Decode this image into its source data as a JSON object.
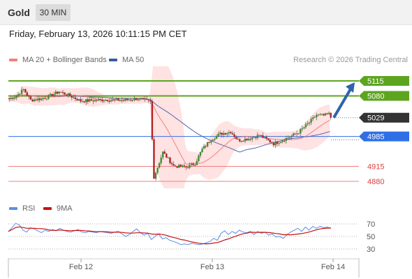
{
  "header": {
    "symbol": "Gold",
    "timeframe": "30 MIN",
    "datetime": "Friday, February 13, 2026 10:11:15 PM CET"
  },
  "legend": {
    "ma20_label": "MA 20 + Bollinger Bands",
    "ma50_label": "MA 50",
    "credit": "Research © 2026 Trading Central",
    "rsi_label": "RSI",
    "rsi_ma_label": "9MA"
  },
  "colors": {
    "resistance": "#5da51f",
    "support": "#f08080",
    "pivot": "#2f6fe6",
    "last_price": "#333333",
    "candle_up": "#3f8f2a",
    "candle_down": "#b22222",
    "ma20": "#f08080",
    "ma50": "#5566aa",
    "bollinger_fill": "#ffd6d6",
    "rsi": "#5b8ee6",
    "rsi_ma": "#cc1111",
    "arrow": "#2d63b0"
  },
  "chart_data": [
    {
      "type": "candlestick",
      "title": "",
      "x_ticks": [
        "Feb 12",
        "Feb 13",
        "Feb 14"
      ],
      "ylim": [
        4862,
        5148
      ],
      "levels": [
        {
          "label": "5115",
          "value": 5115,
          "kind": "resistance"
        },
        {
          "label": "5080",
          "value": 5080,
          "kind": "resistance"
        },
        {
          "label": "4985",
          "value": 4985,
          "kind": "pivot"
        },
        {
          "label": "4915",
          "value": 4915,
          "kind": "support"
        },
        {
          "label": "4880",
          "value": 4880,
          "kind": "support"
        }
      ],
      "last_price": {
        "label": "5029",
        "value": 5029
      },
      "forecast_arrow": {
        "from": 5029,
        "to": 5115
      }
    },
    {
      "type": "line",
      "title": "",
      "series": [
        {
          "name": "RSI",
          "values": [
            58,
            64,
            71,
            68,
            60,
            57,
            64,
            62,
            59,
            56,
            60,
            58,
            61,
            59,
            63,
            60,
            58,
            57,
            59,
            61,
            57,
            56,
            58,
            57,
            56,
            58,
            57,
            56,
            55,
            57,
            58,
            54,
            50,
            53,
            58,
            62,
            56,
            52,
            55,
            45,
            50,
            54,
            46,
            48,
            44,
            42,
            40,
            37,
            38,
            37,
            39,
            38,
            37,
            38,
            40,
            42,
            47,
            44,
            55,
            59,
            53,
            58,
            55,
            60,
            57,
            56,
            58,
            53,
            58,
            55,
            57,
            52,
            54,
            49,
            50,
            47,
            53,
            57,
            60,
            63,
            58,
            65,
            60,
            66,
            63,
            66,
            64,
            65,
            63
          ]
        },
        {
          "name": "9MA"
        }
      ],
      "ylim": [
        30,
        72
      ],
      "y_ticks": [
        70,
        50,
        30
      ],
      "dotted_levels": [
        70,
        50,
        30
      ]
    }
  ]
}
